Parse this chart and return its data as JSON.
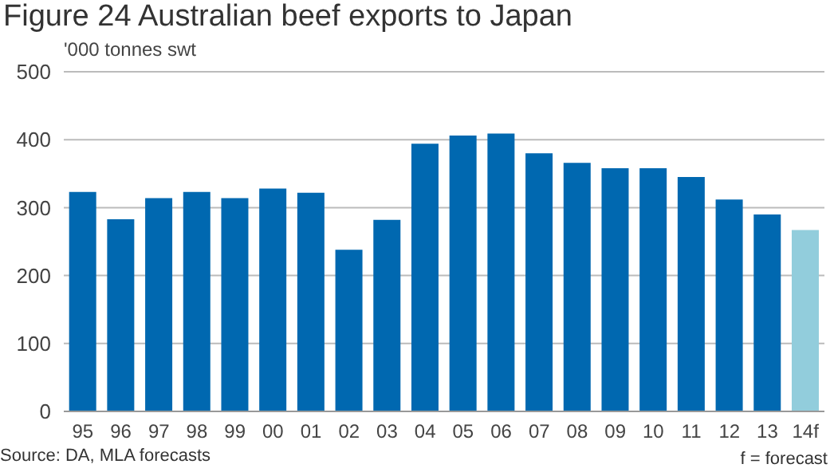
{
  "chart_data": {
    "type": "bar",
    "title": "Figure 24 Australian beef exports to Japan",
    "ylabel": "'000 tonnes swt",
    "categories": [
      "95",
      "96",
      "97",
      "98",
      "99",
      "00",
      "01",
      "02",
      "03",
      "04",
      "05",
      "06",
      "07",
      "08",
      "09",
      "10",
      "11",
      "12",
      "13",
      "14f"
    ],
    "values": [
      323,
      283,
      314,
      323,
      314,
      328,
      322,
      238,
      282,
      394,
      406,
      409,
      380,
      366,
      358,
      358,
      345,
      312,
      290,
      267
    ],
    "colors": [
      "#0068b0",
      "#0068b0",
      "#0068b0",
      "#0068b0",
      "#0068b0",
      "#0068b0",
      "#0068b0",
      "#0068b0",
      "#0068b0",
      "#0068b0",
      "#0068b0",
      "#0068b0",
      "#0068b0",
      "#0068b0",
      "#0068b0",
      "#0068b0",
      "#0068b0",
      "#0068b0",
      "#0068b0",
      "#92cddc"
    ],
    "ylim": [
      0,
      500
    ],
    "yticks": [
      0,
      100,
      200,
      300,
      400,
      500
    ],
    "grid": "y",
    "annotations": [
      "Source: DA, MLA forecasts",
      "f = forecast"
    ]
  }
}
